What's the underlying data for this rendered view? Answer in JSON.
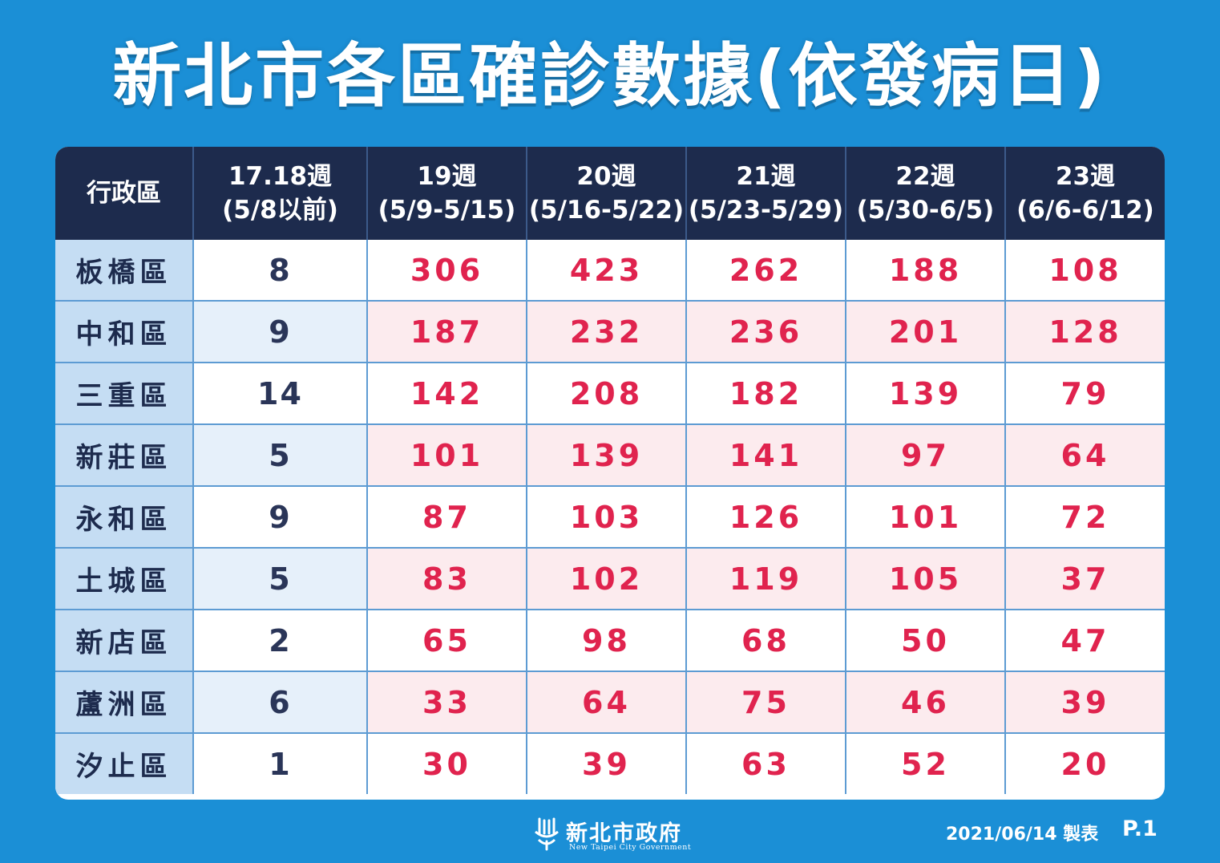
{
  "title": "新北市各區確診數據(依發病日)",
  "table": {
    "headers": [
      {
        "line1": "行政區",
        "line2": ""
      },
      {
        "line1": "17.18週",
        "line2": "(5/8以前)"
      },
      {
        "line1": "19週",
        "line2": "(5/9-5/15)"
      },
      {
        "line1": "20週",
        "line2": "(5/16-5/22)"
      },
      {
        "line1": "21週",
        "line2": "(5/23-5/29)"
      },
      {
        "line1": "22週",
        "line2": "(5/30-6/5)"
      },
      {
        "line1": "23週",
        "line2": "(6/6-6/12)"
      }
    ],
    "rows": [
      {
        "district": "板橋區",
        "values": [
          "8",
          "306",
          "423",
          "262",
          "188",
          "108"
        ]
      },
      {
        "district": "中和區",
        "values": [
          "9",
          "187",
          "232",
          "236",
          "201",
          "128"
        ]
      },
      {
        "district": "三重區",
        "values": [
          "14",
          "142",
          "208",
          "182",
          "139",
          "79"
        ]
      },
      {
        "district": "新莊區",
        "values": [
          "5",
          "101",
          "139",
          "141",
          "97",
          "64"
        ]
      },
      {
        "district": "永和區",
        "values": [
          "9",
          "87",
          "103",
          "126",
          "101",
          "72"
        ]
      },
      {
        "district": "土城區",
        "values": [
          "5",
          "83",
          "102",
          "119",
          "105",
          "37"
        ]
      },
      {
        "district": "新店區",
        "values": [
          "2",
          "65",
          "98",
          "68",
          "50",
          "47"
        ]
      },
      {
        "district": "蘆洲區",
        "values": [
          "6",
          "33",
          "64",
          "75",
          "46",
          "39"
        ]
      },
      {
        "district": "汐止區",
        "values": [
          "1",
          "30",
          "39",
          "63",
          "52",
          "20"
        ]
      }
    ]
  },
  "footer": {
    "logo_name": "新北市政府",
    "logo_english": "New Taipei City Government",
    "date": "2021/06/14 製表",
    "page": "P.1"
  },
  "colors": {
    "background": "#1b8fd6",
    "header": "#1d2b4d",
    "value_text": "#e0234e",
    "district_cell": "#c5ddf3",
    "alt_row": "#fcebee"
  },
  "icons": {
    "logo": "new-taipei-city-emblem-icon"
  }
}
